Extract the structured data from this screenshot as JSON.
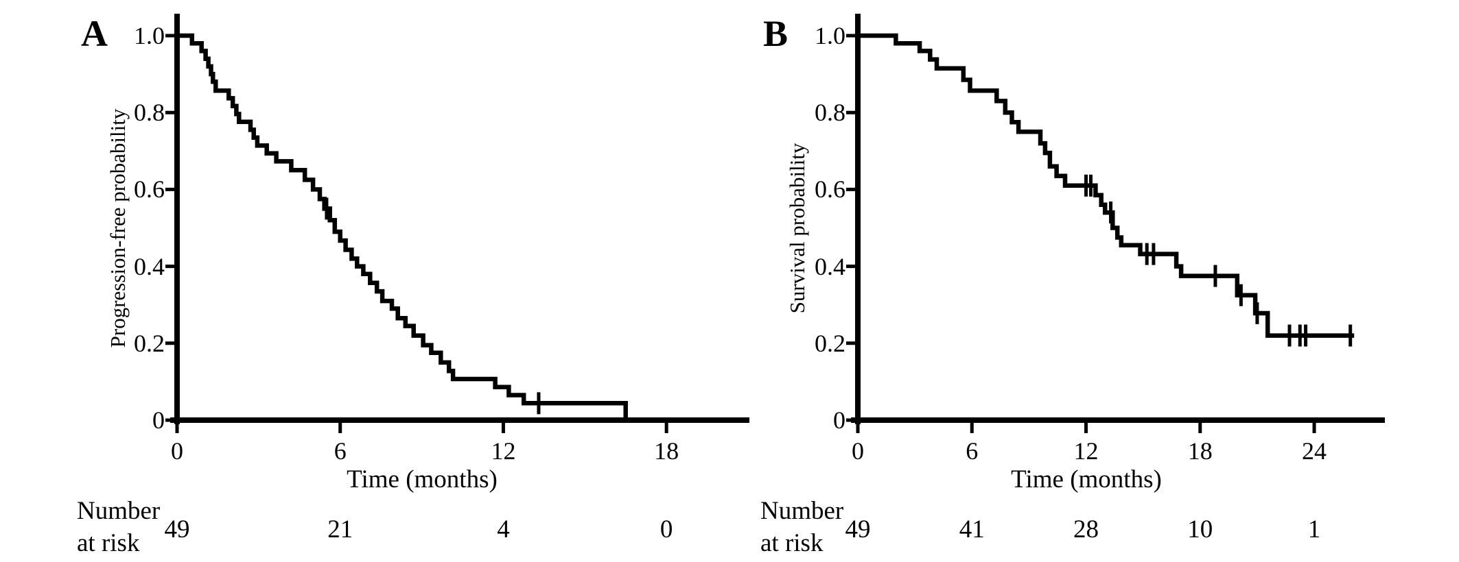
{
  "figure": {
    "background": "#ffffff",
    "ink": "#000000"
  },
  "panels": [
    {
      "letter": "A",
      "y_label": "Progression-free probability",
      "x_label": "Time (months)",
      "risk_line1": "Number",
      "risk_line2": "at risk"
    },
    {
      "letter": "B",
      "y_label": "Survival probability",
      "x_label": "Time (months)",
      "risk_line1": "Number",
      "risk_line2": "at risk"
    }
  ],
  "chart_data": [
    {
      "type": "line",
      "subtype": "kaplan_meier_step",
      "panel": "A",
      "title": "A",
      "xlabel": "Time (months)",
      "ylabel": "Progression-free probability",
      "xlim": [
        0,
        21
      ],
      "ylim": [
        0,
        1.0
      ],
      "grid": false,
      "legend": "none",
      "x_tick_values": [
        0,
        6,
        12,
        18
      ],
      "x_tick_labels": [
        "0",
        "6",
        "12",
        "18"
      ],
      "y_tick_values": [
        0,
        0.2,
        0.4,
        0.6,
        0.8,
        1.0
      ],
      "y_tick_labels": [
        "0",
        "0.2",
        "0.4",
        "0.6",
        "0.8",
        "1.0"
      ],
      "n_patients": 49,
      "steps": [
        [
          0,
          1.0
        ],
        [
          0.55,
          0.98
        ],
        [
          0.9,
          0.96
        ],
        [
          1.05,
          0.94
        ],
        [
          1.15,
          0.92
        ],
        [
          1.25,
          0.9
        ],
        [
          1.32,
          0.88
        ],
        [
          1.42,
          0.857
        ],
        [
          1.9,
          0.837
        ],
        [
          2.05,
          0.817
        ],
        [
          2.18,
          0.796
        ],
        [
          2.28,
          0.776
        ],
        [
          2.7,
          0.755
        ],
        [
          2.82,
          0.735
        ],
        [
          2.95,
          0.714
        ],
        [
          3.3,
          0.694
        ],
        [
          3.65,
          0.673
        ],
        [
          4.2,
          0.65
        ],
        [
          4.7,
          0.625
        ],
        [
          5.0,
          0.6
        ],
        [
          5.25,
          0.575
        ],
        [
          5.42,
          0.55
        ],
        [
          5.62,
          0.52
        ],
        [
          5.8,
          0.49
        ],
        [
          6.0,
          0.467
        ],
        [
          6.2,
          0.443
        ],
        [
          6.42,
          0.42
        ],
        [
          6.62,
          0.4
        ],
        [
          6.85,
          0.38
        ],
        [
          7.1,
          0.357
        ],
        [
          7.35,
          0.335
        ],
        [
          7.55,
          0.31
        ],
        [
          7.9,
          0.29
        ],
        [
          8.12,
          0.265
        ],
        [
          8.4,
          0.245
        ],
        [
          8.7,
          0.22
        ],
        [
          9.05,
          0.195
        ],
        [
          9.35,
          0.175
        ],
        [
          9.7,
          0.15
        ],
        [
          10.0,
          0.128
        ],
        [
          10.15,
          0.107
        ],
        [
          11.7,
          0.086
        ],
        [
          12.2,
          0.065
        ],
        [
          12.75,
          0.044
        ],
        [
          16.5,
          0
        ]
      ],
      "end_time": 16.5,
      "censor_marks": [
        [
          5.5,
          0.55
        ],
        [
          13.3,
          0.044
        ]
      ],
      "number_at_risk": {
        "times": [
          0,
          6,
          12,
          18
        ],
        "counts": [
          "49",
          "21",
          "4",
          "0"
        ]
      }
    },
    {
      "type": "line",
      "subtype": "kaplan_meier_step",
      "panel": "B",
      "title": "B",
      "xlabel": "Time (months)",
      "ylabel": "Survival probability",
      "xlim": [
        0,
        27.7
      ],
      "ylim": [
        0,
        1.0
      ],
      "grid": false,
      "legend": "none",
      "x_tick_values": [
        0,
        6,
        12,
        18,
        24
      ],
      "x_tick_labels": [
        "0",
        "6",
        "12",
        "18",
        "24"
      ],
      "y_tick_values": [
        0,
        0.2,
        0.4,
        0.6,
        0.8,
        1.0
      ],
      "y_tick_labels": [
        "0",
        "0.2",
        "0.4",
        "0.6",
        "0.8",
        "1.0"
      ],
      "n_patients": 49,
      "steps": [
        [
          0,
          1.0
        ],
        [
          2.0,
          0.98
        ],
        [
          3.25,
          0.96
        ],
        [
          3.8,
          0.938
        ],
        [
          4.15,
          0.915
        ],
        [
          5.55,
          0.885
        ],
        [
          5.9,
          0.857
        ],
        [
          7.3,
          0.83
        ],
        [
          7.75,
          0.8
        ],
        [
          8.1,
          0.775
        ],
        [
          8.45,
          0.75
        ],
        [
          9.6,
          0.72
        ],
        [
          9.85,
          0.695
        ],
        [
          10.1,
          0.66
        ],
        [
          10.45,
          0.635
        ],
        [
          10.9,
          0.61
        ],
        [
          12.5,
          0.585
        ],
        [
          12.8,
          0.56
        ],
        [
          13.0,
          0.54
        ],
        [
          13.4,
          0.5
        ],
        [
          13.65,
          0.475
        ],
        [
          13.85,
          0.455
        ],
        [
          14.85,
          0.432
        ],
        [
          16.75,
          0.4
        ],
        [
          17.0,
          0.375
        ],
        [
          19.95,
          0.325
        ],
        [
          20.9,
          0.278
        ],
        [
          21.55,
          0.22
        ]
      ],
      "end_time": 26.1,
      "censor_marks": [
        [
          12.0,
          0.61
        ],
        [
          12.25,
          0.61
        ],
        [
          13.3,
          0.54
        ],
        [
          15.2,
          0.432
        ],
        [
          15.55,
          0.432
        ],
        [
          18.8,
          0.375
        ],
        [
          20.15,
          0.325
        ],
        [
          21.0,
          0.278
        ],
        [
          22.7,
          0.22
        ],
        [
          23.25,
          0.22
        ],
        [
          23.55,
          0.22
        ],
        [
          25.9,
          0.22
        ]
      ],
      "number_at_risk": {
        "times": [
          0,
          6,
          12,
          18,
          24
        ],
        "counts": [
          "49",
          "41",
          "28",
          "10",
          "1"
        ]
      }
    }
  ]
}
